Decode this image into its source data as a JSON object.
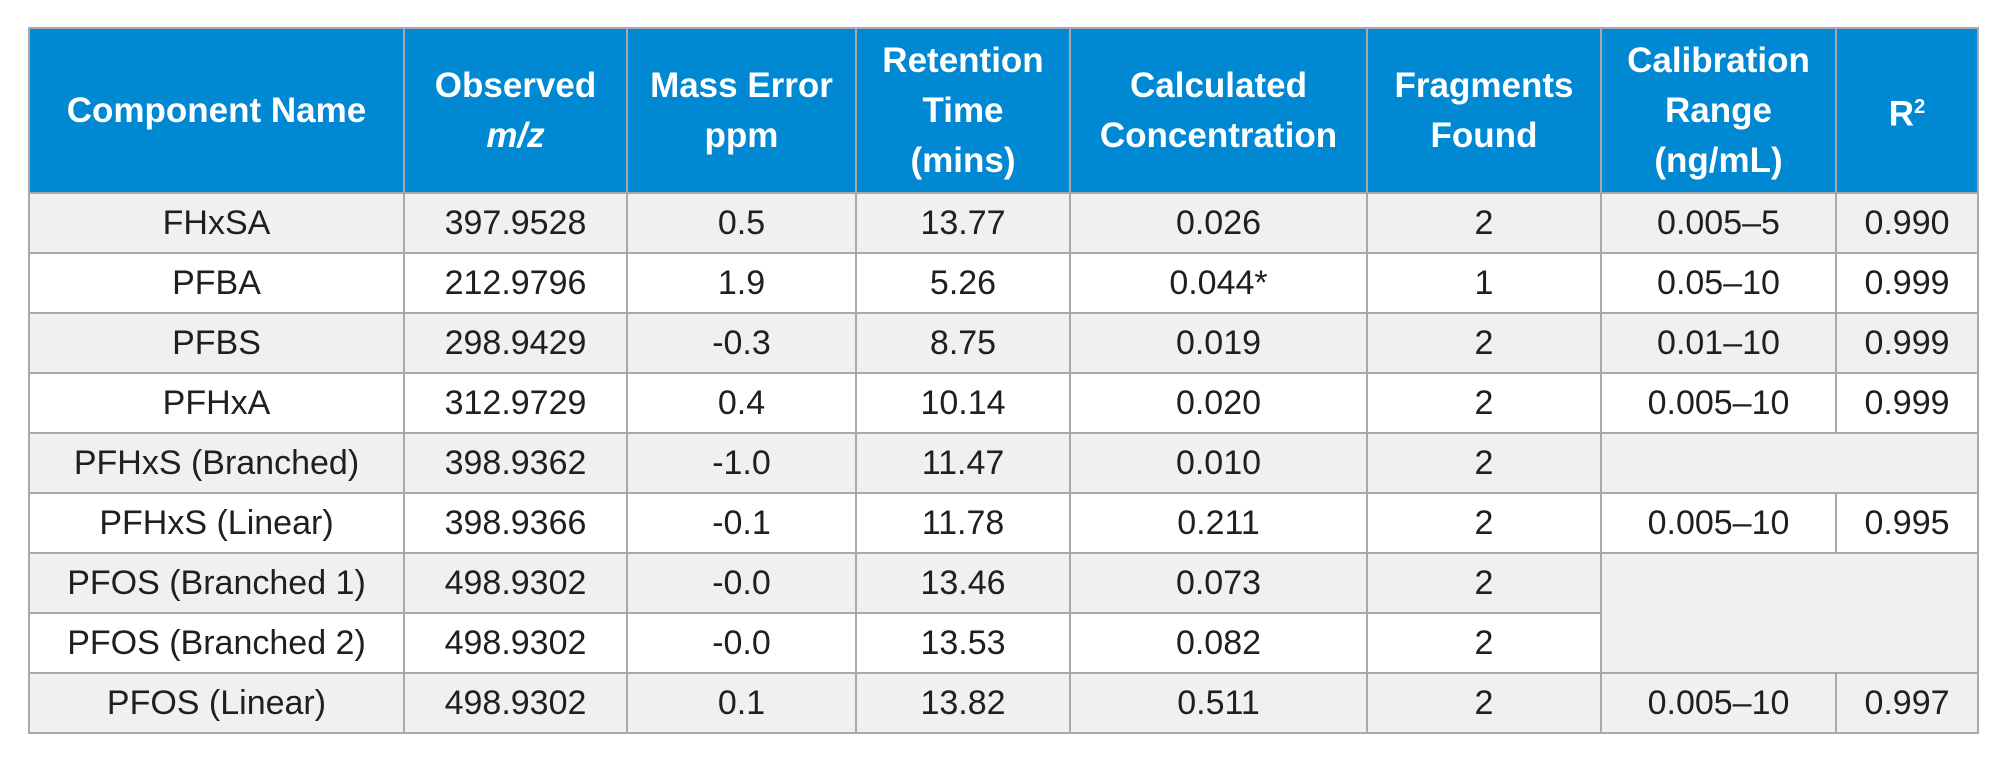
{
  "table": {
    "headers": {
      "component": "Component Name",
      "observed_line1": "Observed",
      "observed_line2": "m/z",
      "mass_error_line1": "Mass Error",
      "mass_error_line2": "ppm",
      "rt_line1": "Retention",
      "rt_line2": "Time",
      "rt_line3": "(mins)",
      "conc_line1": "Calculated",
      "conc_line2": "Concentration",
      "frag_line1": "Fragments",
      "frag_line2": "Found",
      "cal_line1": "Calibration",
      "cal_line2": "Range",
      "cal_line3": "(ng/mL)",
      "r2_base": "R",
      "r2_sup": "2"
    },
    "rows": [
      {
        "name": "FHxSA",
        "mz": "397.9528",
        "ppm": "0.5",
        "rt": "13.77",
        "conc": "0.026",
        "frag": "2",
        "cal": "0.005–5",
        "r2": "0.990"
      },
      {
        "name": "PFBA",
        "mz": "212.9796",
        "ppm": "1.9",
        "rt": "5.26",
        "conc": "0.044*",
        "frag": "1",
        "cal": "0.05–10",
        "r2": "0.999"
      },
      {
        "name": "PFBS",
        "mz": "298.9429",
        "ppm": "-0.3",
        "rt": "8.75",
        "conc": "0.019",
        "frag": "2",
        "cal": "0.01–10",
        "r2": "0.999"
      },
      {
        "name": "PFHxA",
        "mz": "312.9729",
        "ppm": "0.4",
        "rt": "10.14",
        "conc": "0.020",
        "frag": "2",
        "cal": "0.005–10",
        "r2": "0.999"
      },
      {
        "name": "PFHxS (Branched)",
        "mz": "398.9362",
        "ppm": "-1.0",
        "rt": "11.47",
        "conc": "0.010",
        "frag": "2"
      },
      {
        "name": "PFHxS (Linear)",
        "mz": "398.9366",
        "ppm": "-0.1",
        "rt": "11.78",
        "conc": "0.211",
        "frag": "2",
        "cal": "0.005–10",
        "r2": "0.995"
      },
      {
        "name": "PFOS (Branched 1)",
        "mz": "498.9302",
        "ppm": "-0.0",
        "rt": "13.46",
        "conc": "0.073",
        "frag": "2"
      },
      {
        "name": "PFOS (Branched 2)",
        "mz": "498.9302",
        "ppm": "-0.0",
        "rt": "13.53",
        "conc": "0.082",
        "frag": "2"
      },
      {
        "name": "PFOS (Linear)",
        "mz": "498.9302",
        "ppm": "0.1",
        "rt": "13.82",
        "conc": "0.511",
        "frag": "2",
        "cal": "0.005–10",
        "r2": "0.997"
      }
    ]
  },
  "colors": {
    "header_bg": "#0089d2",
    "header_text": "#ffffff",
    "alt_row_bg": "#f0f0f2",
    "grid_line": "#a9a9ab"
  }
}
